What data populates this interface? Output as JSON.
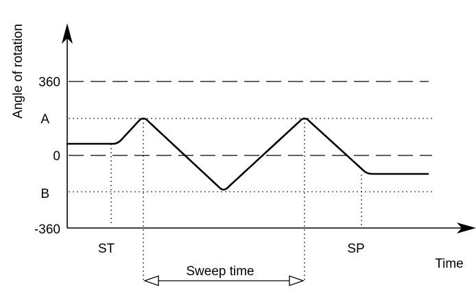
{
  "diagram": {
    "axis_labels": {
      "y": "Angle of rotation",
      "x": "Time"
    },
    "y_levels": {
      "plus_360": "360",
      "a": "A",
      "zero": "0",
      "b": "B",
      "minus_360": "-360"
    },
    "x_markers": {
      "start": "ST",
      "stop": "SP"
    },
    "interval_label": "Sweep time"
  }
}
